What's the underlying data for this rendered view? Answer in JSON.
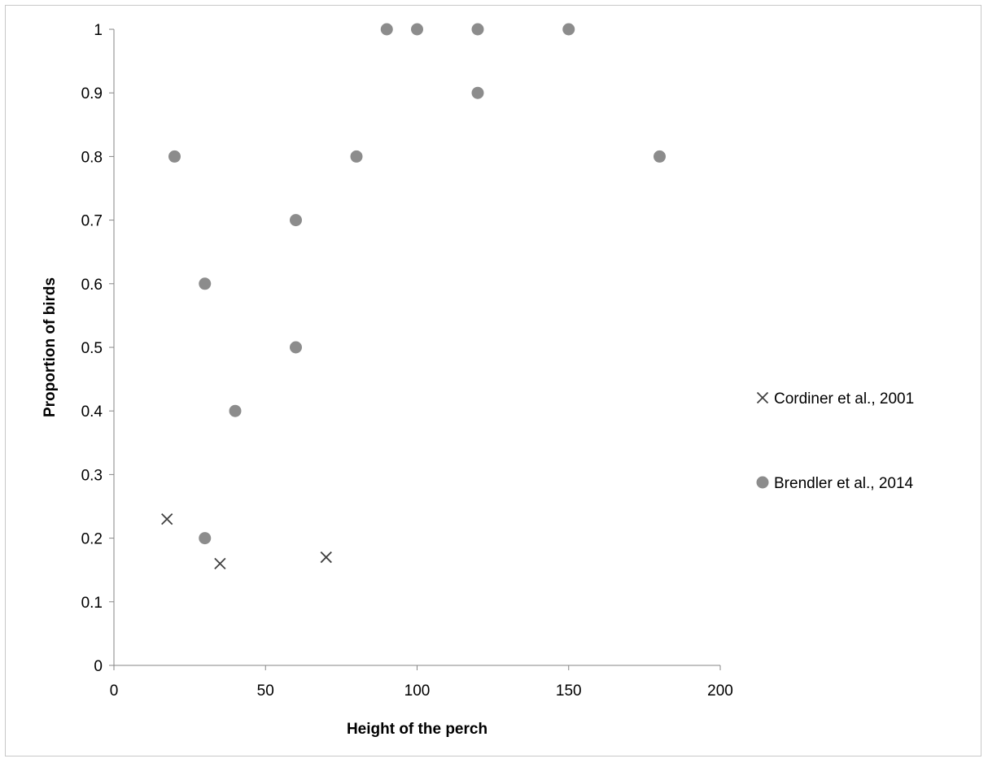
{
  "chart_data": {
    "type": "scatter",
    "title": "",
    "xlabel": "Height of the perch",
    "ylabel": "Proportion of birds",
    "xlim": [
      0,
      200
    ],
    "ylim": [
      0,
      1
    ],
    "x_ticks": [
      0,
      50,
      100,
      150,
      200
    ],
    "x_tick_labels": [
      "0",
      "50",
      "100",
      "150",
      "200"
    ],
    "y_ticks": [
      0,
      0.1,
      0.2,
      0.3,
      0.4,
      0.5,
      0.6,
      0.7,
      0.8,
      0.9,
      1
    ],
    "y_tick_labels": [
      "0",
      "0.1",
      "0.2",
      "0.3",
      "0.4",
      "0.5",
      "0.6",
      "0.7",
      "0.8",
      "0.9",
      "1"
    ],
    "grid": false,
    "legend_position": "right",
    "series": [
      {
        "name": "Cordiner et al., 2001",
        "marker": "x",
        "color": "#404040",
        "points": [
          {
            "x": 17.5,
            "y": 0.23
          },
          {
            "x": 35,
            "y": 0.16
          },
          {
            "x": 70,
            "y": 0.17
          }
        ]
      },
      {
        "name": "Brendler et al., 2014",
        "marker": "circle",
        "color": "#8c8c8c",
        "points": [
          {
            "x": 20,
            "y": 0.8
          },
          {
            "x": 30,
            "y": 0.6
          },
          {
            "x": 30,
            "y": 0.2
          },
          {
            "x": 40,
            "y": 0.4
          },
          {
            "x": 60,
            "y": 0.7
          },
          {
            "x": 60,
            "y": 0.5
          },
          {
            "x": 80,
            "y": 0.8
          },
          {
            "x": 90,
            "y": 1
          },
          {
            "x": 100,
            "y": 1
          },
          {
            "x": 120,
            "y": 1
          },
          {
            "x": 120,
            "y": 0.9
          },
          {
            "x": 150,
            "y": 1
          },
          {
            "x": 180,
            "y": 0.8
          }
        ]
      }
    ]
  }
}
